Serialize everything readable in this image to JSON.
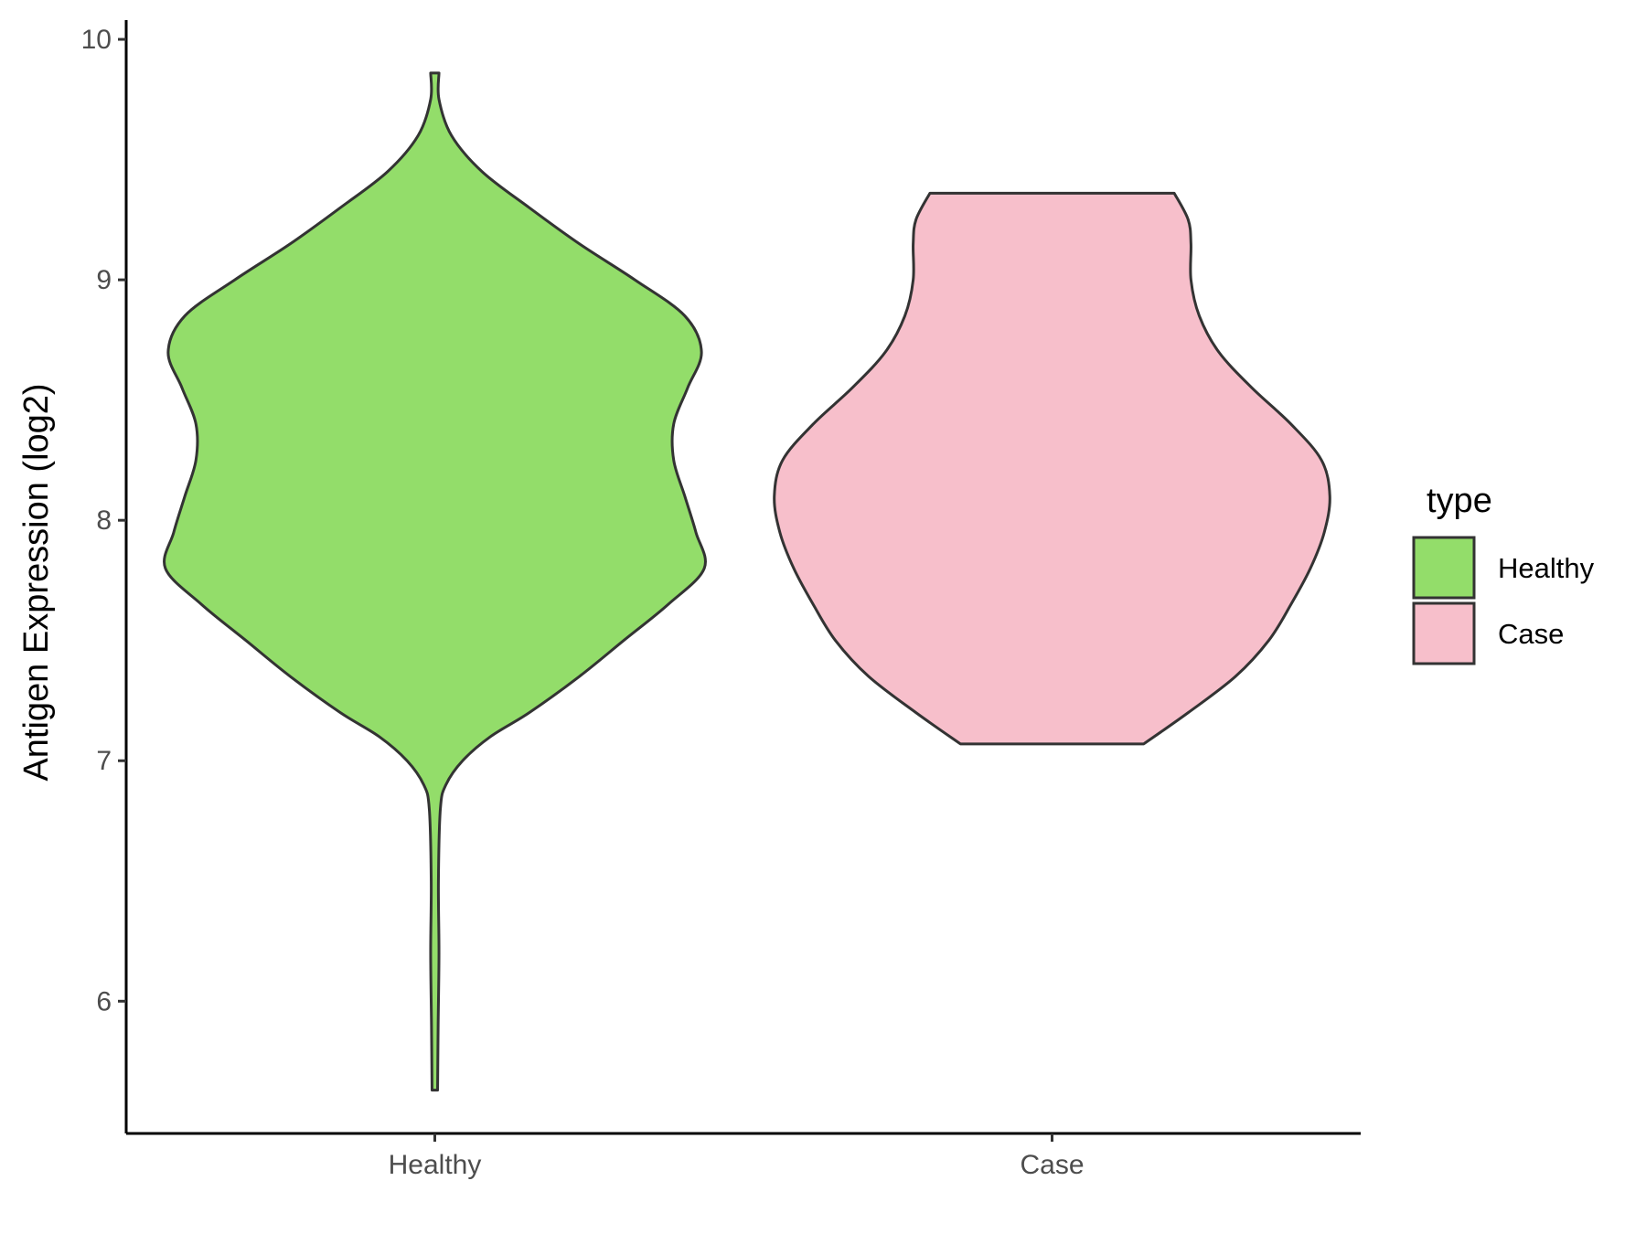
{
  "chart_data": {
    "type": "violin",
    "title": "",
    "xlabel": "",
    "ylabel": "Antigen Expression (log2)",
    "ylim": [
      5.45,
      10.08
    ],
    "yticks": [
      6,
      7,
      8,
      9,
      10
    ],
    "categories": [
      "Healthy",
      "Case"
    ],
    "legend": {
      "title": "type",
      "position": "right",
      "entries": [
        {
          "label": "Healthy",
          "color": "#93dd6a"
        },
        {
          "label": "Case",
          "color": "#f7bfcb"
        }
      ]
    },
    "grid": false,
    "series": [
      {
        "name": "Healthy",
        "color": "#93dd6a",
        "min": 5.63,
        "max": 9.86,
        "density_profile": [
          [
            5.63,
            0.01
          ],
          [
            5.9,
            0.012
          ],
          [
            6.2,
            0.015
          ],
          [
            6.5,
            0.013
          ],
          [
            6.8,
            0.02
          ],
          [
            6.9,
            0.04
          ],
          [
            7.0,
            0.1
          ],
          [
            7.1,
            0.2
          ],
          [
            7.2,
            0.34
          ],
          [
            7.35,
            0.52
          ],
          [
            7.5,
            0.68
          ],
          [
            7.65,
            0.84
          ],
          [
            7.8,
            0.97
          ],
          [
            7.95,
            0.94
          ],
          [
            8.1,
            0.9
          ],
          [
            8.25,
            0.86
          ],
          [
            8.4,
            0.86
          ],
          [
            8.55,
            0.91
          ],
          [
            8.7,
            0.96
          ],
          [
            8.85,
            0.9
          ],
          [
            9.0,
            0.72
          ],
          [
            9.15,
            0.52
          ],
          [
            9.3,
            0.34
          ],
          [
            9.45,
            0.17
          ],
          [
            9.6,
            0.06
          ],
          [
            9.75,
            0.015
          ],
          [
            9.86,
            0.015
          ]
        ]
      },
      {
        "name": "Case",
        "color": "#f7bfcb",
        "min": 7.07,
        "max": 9.36,
        "density_profile": [
          [
            7.07,
            0.33
          ],
          [
            7.2,
            0.49
          ],
          [
            7.35,
            0.66
          ],
          [
            7.5,
            0.78
          ],
          [
            7.65,
            0.86
          ],
          [
            7.8,
            0.93
          ],
          [
            7.95,
            0.98
          ],
          [
            8.1,
            1.0
          ],
          [
            8.25,
            0.97
          ],
          [
            8.4,
            0.86
          ],
          [
            8.55,
            0.72
          ],
          [
            8.7,
            0.6
          ],
          [
            8.85,
            0.53
          ],
          [
            9.0,
            0.5
          ],
          [
            9.15,
            0.5
          ],
          [
            9.25,
            0.49
          ],
          [
            9.36,
            0.44
          ]
        ]
      }
    ]
  }
}
